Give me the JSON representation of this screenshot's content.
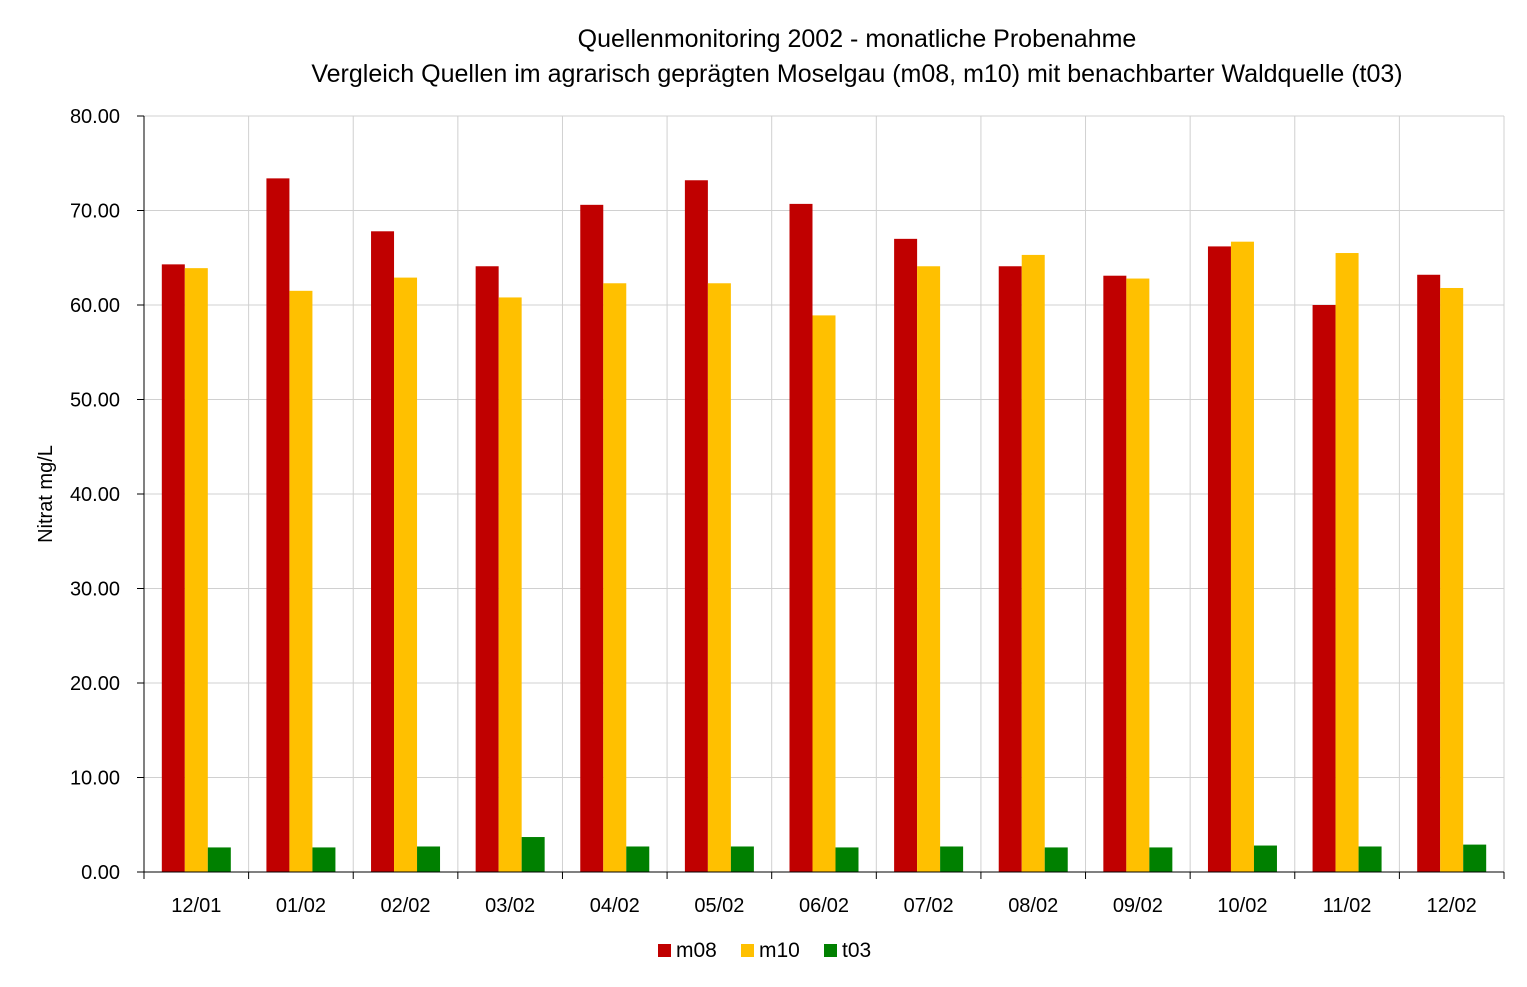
{
  "chart_data": {
    "type": "bar",
    "title": "Quellenmonitoring 2002 - monatliche Probenahme",
    "subtitle": "Vergleich Quellen im agrarisch geprägten Moselgau (m08, m10) mit benachbarter Waldquelle (t03)",
    "xlabel": "",
    "ylabel": "Nitrat mg/L",
    "ylim": [
      0,
      80
    ],
    "yticks": [
      "0.00",
      "10.00",
      "20.00",
      "30.00",
      "40.00",
      "50.00",
      "60.00",
      "70.00",
      "80.00"
    ],
    "categories": [
      "12/01",
      "01/02",
      "02/02",
      "03/02",
      "04/02",
      "05/02",
      "06/02",
      "07/02",
      "08/02",
      "09/02",
      "10/02",
      "11/02",
      "12/02"
    ],
    "series": [
      {
        "name": "m08",
        "color": "#c00000",
        "values": [
          64.3,
          73.4,
          67.8,
          64.1,
          70.6,
          73.2,
          70.7,
          67.0,
          64.1,
          63.1,
          66.2,
          60.0,
          63.2
        ]
      },
      {
        "name": "m10",
        "color": "#ffc000",
        "values": [
          63.9,
          61.5,
          62.9,
          60.8,
          62.3,
          62.3,
          58.9,
          64.1,
          65.3,
          62.8,
          66.7,
          65.5,
          61.8
        ]
      },
      {
        "name": "t03",
        "color": "#008000",
        "values": [
          2.6,
          2.6,
          2.7,
          3.7,
          2.7,
          2.7,
          2.6,
          2.7,
          2.6,
          2.6,
          2.8,
          2.7,
          2.9
        ]
      }
    ],
    "grid": true,
    "legend_position": "bottom-center"
  }
}
